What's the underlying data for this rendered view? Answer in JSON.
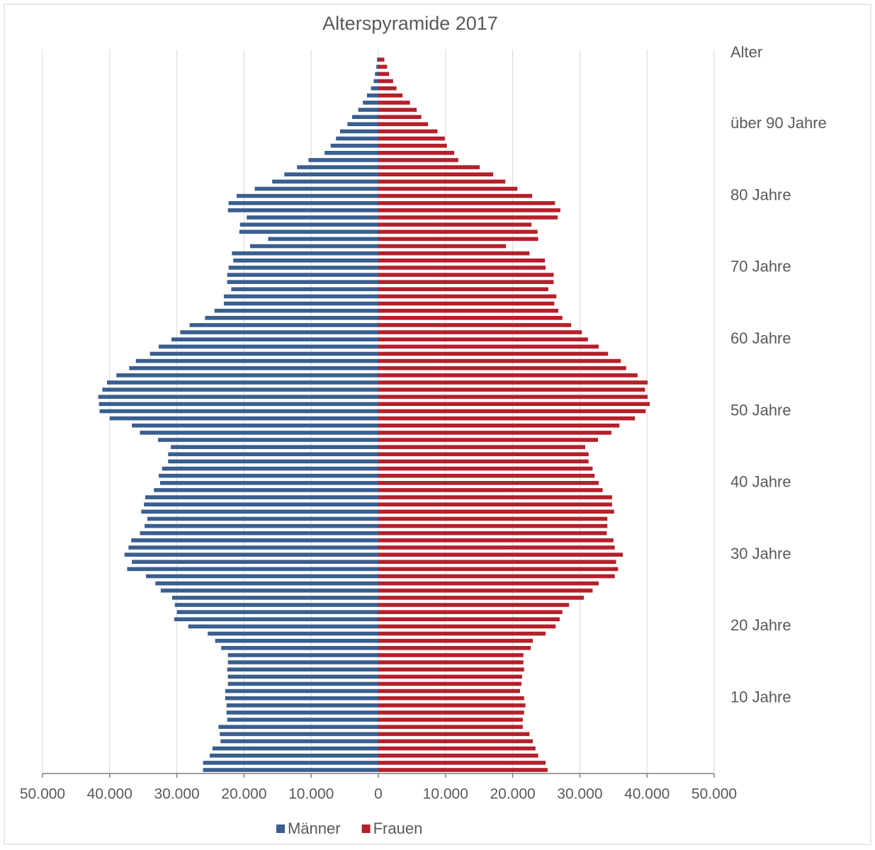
{
  "chart_data": {
    "type": "pyramid",
    "title": "Alterspyramide 2017",
    "y_axis_label": "Alter",
    "categories": [
      null,
      null,
      null,
      null,
      null,
      null,
      null,
      null,
      null,
      null,
      "10 Jahre",
      null,
      null,
      null,
      null,
      null,
      null,
      null,
      null,
      null,
      "20 Jahre",
      null,
      null,
      null,
      null,
      null,
      null,
      null,
      null,
      null,
      "30 Jahre",
      null,
      null,
      null,
      null,
      null,
      null,
      null,
      null,
      null,
      "40 Jahre",
      null,
      null,
      null,
      null,
      null,
      null,
      null,
      null,
      null,
      "50 Jahre",
      null,
      null,
      null,
      null,
      null,
      null,
      null,
      null,
      null,
      "60 Jahre",
      null,
      null,
      null,
      null,
      null,
      null,
      null,
      null,
      null,
      "70 Jahre",
      null,
      null,
      null,
      null,
      null,
      null,
      null,
      null,
      null,
      "80 Jahre",
      null,
      null,
      null,
      null,
      null,
      null,
      null,
      null,
      null,
      "über 90 Jahre",
      null,
      null,
      null,
      null,
      null,
      null,
      null,
      null,
      null
    ],
    "series": [
      {
        "name": "Männer",
        "color": "#3a5e8f",
        "values": [
          -26100,
          -26100,
          -25100,
          -24700,
          -23500,
          -23600,
          -23800,
          -22500,
          -22600,
          -22600,
          -22800,
          -22800,
          -22400,
          -22400,
          -22500,
          -22400,
          -22400,
          -23400,
          -24300,
          -25400,
          -28300,
          -30400,
          -30000,
          -30300,
          -30700,
          -32400,
          -33200,
          -34600,
          -37400,
          -36700,
          -37800,
          -37200,
          -36800,
          -35500,
          -34800,
          -34400,
          -35300,
          -34900,
          -34700,
          -33400,
          -32500,
          -32700,
          -32200,
          -31300,
          -31300,
          -30900,
          -32800,
          -35500,
          -36700,
          -40000,
          -41500,
          -41600,
          -41700,
          -41100,
          -40400,
          -39000,
          -37100,
          -36100,
          -34000,
          -32700,
          -30800,
          -29500,
          -28100,
          -25800,
          -24400,
          -23000,
          -23000,
          -21900,
          -22500,
          -22500,
          -22300,
          -21600,
          -21800,
          -19100,
          -16400,
          -20700,
          -20600,
          -19600,
          -22400,
          -22300,
          -21100,
          -18400,
          -15800,
          -14000,
          -12100,
          -10400,
          -8000,
          -7100,
          -6300,
          -5700,
          -4600,
          -3900,
          -3000,
          -2300,
          -1700,
          -1100,
          -700,
          -500,
          -300,
          -200
        ]
      },
      {
        "name": "Frauen",
        "color": "#b4202a",
        "values": [
          25200,
          24900,
          23800,
          23400,
          23000,
          22500,
          21500,
          21500,
          21700,
          21900,
          21700,
          21100,
          21300,
          21400,
          21700,
          21600,
          21600,
          22700,
          23000,
          24900,
          26400,
          27000,
          27400,
          28400,
          30600,
          31900,
          32800,
          35200,
          35700,
          35400,
          36400,
          35200,
          35000,
          34000,
          34100,
          34100,
          35100,
          34800,
          34800,
          33400,
          32800,
          32200,
          31900,
          31300,
          31300,
          30800,
          32700,
          34700,
          35900,
          38200,
          39800,
          40400,
          40100,
          39700,
          40100,
          38600,
          36900,
          36100,
          34200,
          32800,
          31200,
          30300,
          28700,
          27400,
          26800,
          26200,
          26500,
          25300,
          26100,
          26100,
          24900,
          24800,
          22500,
          19000,
          23800,
          23700,
          22800,
          26700,
          27100,
          26300,
          22900,
          20700,
          18900,
          17100,
          15100,
          11900,
          11300,
          10200,
          9900,
          8800,
          7400,
          6400,
          5700,
          4700,
          3600,
          2700,
          2200,
          1600,
          1300,
          900
        ]
      }
    ],
    "xlim": [
      -50000,
      50000
    ],
    "xticks": [
      {
        "value": -50000,
        "label": "50.000"
      },
      {
        "value": -40000,
        "label": "40.000"
      },
      {
        "value": -30000,
        "label": "30.000"
      },
      {
        "value": -20000,
        "label": "20.000"
      },
      {
        "value": -10000,
        "label": "10.000"
      },
      0,
      {
        "value": 10000,
        "label": "10.000"
      },
      {
        "value": 20000,
        "label": "20.000"
      },
      {
        "value": 30000,
        "label": "30.000"
      },
      {
        "value": 40000,
        "label": "40.000"
      },
      {
        "value": 50000,
        "label": "50.000"
      }
    ],
    "grid": true,
    "legend": "bottom"
  }
}
